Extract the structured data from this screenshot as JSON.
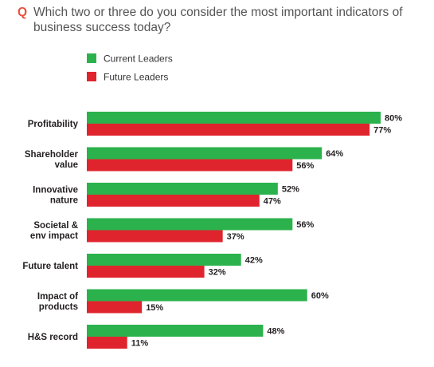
{
  "question": {
    "mark": "Q",
    "text": "Which two or three do you consider the most important indicators of business success today?"
  },
  "chart_data": {
    "type": "bar",
    "orientation": "horizontal",
    "categories": [
      [
        "Profitability"
      ],
      [
        "Shareholder",
        "value"
      ],
      [
        "Innovative",
        "nature"
      ],
      [
        "Societal &",
        "env impact"
      ],
      [
        "Future talent"
      ],
      [
        "Impact of",
        "products"
      ],
      [
        "H&S record"
      ]
    ],
    "series": [
      {
        "name": "Current Leaders",
        "color": "#2bb24c",
        "values": [
          80,
          64,
          52,
          56,
          42,
          60,
          48
        ]
      },
      {
        "name": "Future Leaders",
        "color": "#e0242e",
        "values": [
          77,
          56,
          47,
          37,
          32,
          15,
          11
        ]
      }
    ],
    "value_suffix": "%",
    "xlim": [
      0,
      100
    ],
    "legend_position": "top-left",
    "grid": false
  }
}
